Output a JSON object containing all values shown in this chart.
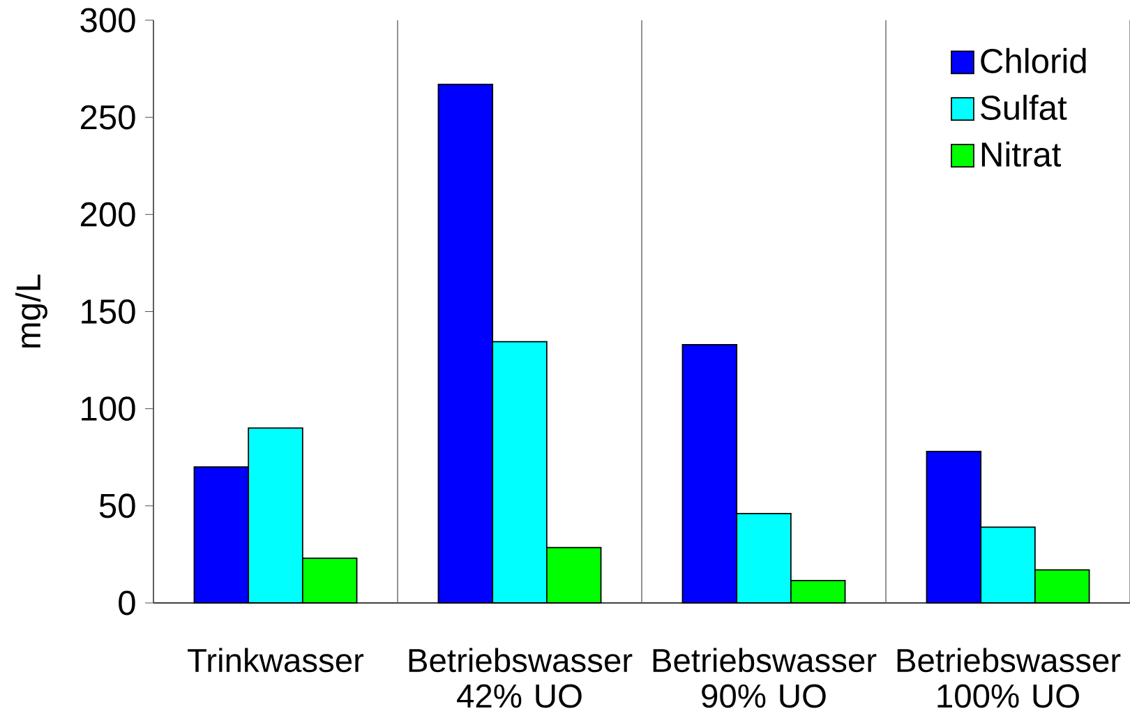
{
  "chart_data": {
    "type": "bar",
    "ylabel": "mg/L",
    "categories": [
      "Trinkwasser",
      "Betriebswasser 42% UO",
      "Betriebswasser 90% UO",
      "Betriebswasser 100% UO"
    ],
    "series": [
      {
        "name": "Chlorid",
        "color": "#0000ff",
        "values": [
          70,
          267,
          133,
          78
        ]
      },
      {
        "name": "Sulfat",
        "color": "#00ffff",
        "values": [
          90,
          134.5,
          46,
          39
        ]
      },
      {
        "name": "Nitrat",
        "color": "#00ff00",
        "values": [
          23,
          28.5,
          11.5,
          17
        ]
      }
    ],
    "ylim": [
      0,
      300
    ],
    "yticks": [
      0,
      50,
      100,
      150,
      200,
      250,
      300
    ],
    "grid": "x",
    "legend": "top right"
  }
}
